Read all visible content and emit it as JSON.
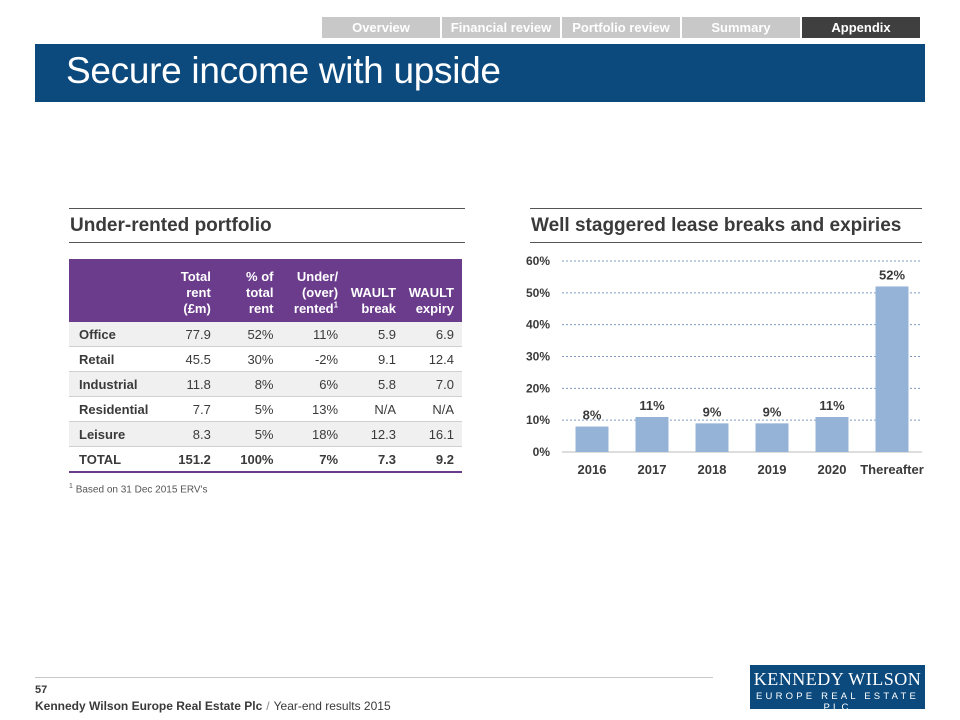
{
  "nav": {
    "tabs": [
      {
        "label": "Overview",
        "active": false
      },
      {
        "label": "Financial review",
        "active": false
      },
      {
        "label": "Portfolio review",
        "active": false
      },
      {
        "label": "Summary",
        "active": false
      },
      {
        "label": "Appendix",
        "active": true
      }
    ]
  },
  "title": "Secure income with upside",
  "left_section": {
    "heading": "Under-rented portfolio",
    "table": {
      "headers": [
        {
          "lines": [
            "",
            ""
          ]
        },
        {
          "lines": [
            "Total rent",
            "(£m)"
          ]
        },
        {
          "lines": [
            "% of",
            "total rent"
          ]
        },
        {
          "lines": [
            "Under/",
            "(over)",
            "rented"
          ],
          "sup": "1"
        },
        {
          "lines": [
            "WAULT",
            "break"
          ]
        },
        {
          "lines": [
            "WAULT",
            "expiry"
          ]
        }
      ],
      "rows": [
        [
          "Office",
          "77.9",
          "52%",
          "11%",
          "5.9",
          "6.9"
        ],
        [
          "Retail",
          "45.5",
          "30%",
          "-2%",
          "9.1",
          "12.4"
        ],
        [
          "Industrial",
          "11.8",
          "8%",
          "6%",
          "5.8",
          "7.0"
        ],
        [
          "Residential",
          "7.7",
          "5%",
          "13%",
          "N/A",
          "N/A"
        ],
        [
          "Leisure",
          "8.3",
          "5%",
          "18%",
          "12.3",
          "16.1"
        ]
      ],
      "total": [
        "TOTAL",
        "151.2",
        "100%",
        "7%",
        "7.3",
        "9.2"
      ]
    },
    "footnote_marker": "1",
    "footnote": "Based on 31 Dec 2015 ERV's"
  },
  "right_section": {
    "heading": "Well staggered lease breaks and expiries"
  },
  "chart_data": {
    "type": "bar",
    "categories": [
      "2016",
      "2017",
      "2018",
      "2019",
      "2020",
      "Thereafter"
    ],
    "values": [
      8,
      11,
      9,
      9,
      11,
      52
    ],
    "value_labels": [
      "8%",
      "11%",
      "9%",
      "9%",
      "11%",
      "52%"
    ],
    "ylim": [
      0,
      60
    ],
    "yticks": [
      "0%",
      "10%",
      "20%",
      "30%",
      "40%",
      "50%",
      "60%"
    ],
    "ytick_values": [
      0,
      10,
      20,
      30,
      40,
      50,
      60
    ],
    "grid": true,
    "bar_color": "#95b3d7",
    "grid_color": "#7f9cc0"
  },
  "footer": {
    "page_number": "57",
    "company": "Kennedy Wilson Europe Real Estate Plc",
    "separator": "/",
    "document": "Year-end results 2015"
  },
  "logo": {
    "line1": "KENNEDY WILSON",
    "line2": "EUROPE REAL ESTATE PLC"
  },
  "colors": {
    "brand_blue": "#0c4a7e",
    "table_header_purple": "#6b3b8c",
    "nav_active": "#3f3f3f",
    "nav_inactive": "#c8c8c8"
  }
}
